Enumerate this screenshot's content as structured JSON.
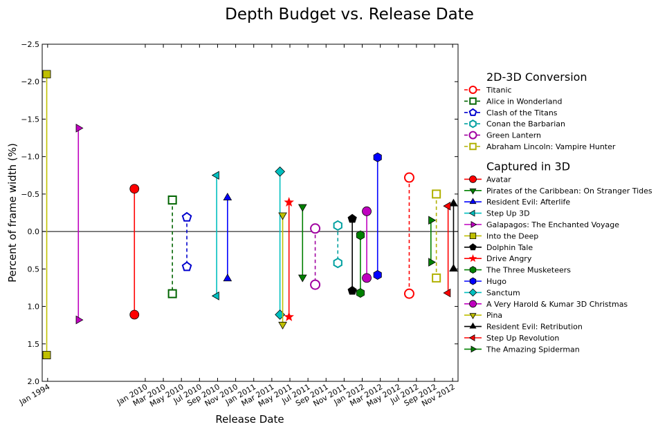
{
  "chart_data": {
    "type": "scatter",
    "title": "Depth Budget vs. Release Date",
    "xlabel": "Release Date",
    "ylabel": "Percent of frame width (%)",
    "ylim": [
      -2.5,
      2.0
    ],
    "y_inverted": true,
    "yticks": [
      -2.5,
      -2.0,
      -1.5,
      -1.0,
      -0.5,
      0.0,
      0.5,
      1.0,
      1.5,
      2.0
    ],
    "ytick_labels": [
      "−2.5",
      "−2.0",
      "−1.5",
      "−1.0",
      "−0.5",
      "0.0",
      "0.5",
      "1.0",
      "1.5",
      "2.0"
    ],
    "xticks": [
      {
        "label": "Jan 1994",
        "pos": 0.6
      },
      {
        "label": "Jan 2010",
        "pos": 6.0
      },
      {
        "label": "Mar 2010",
        "pos": 7.0
      },
      {
        "label": "May 2010",
        "pos": 8.0
      },
      {
        "label": "Jul 2010",
        "pos": 9.0
      },
      {
        "label": "Sep 2010",
        "pos": 10.0
      },
      {
        "label": "Nov 2010",
        "pos": 11.0
      },
      {
        "label": "Jan 2011",
        "pos": 12.0
      },
      {
        "label": "Mar 2011",
        "pos": 13.0
      },
      {
        "label": "May 2011",
        "pos": 14.0
      },
      {
        "label": "Jul 2011",
        "pos": 15.0
      },
      {
        "label": "Sep 2011",
        "pos": 16.0
      },
      {
        "label": "Nov 2011",
        "pos": 17.0
      },
      {
        "label": "Jan 2012",
        "pos": 18.0
      },
      {
        "label": "Mar 2012",
        "pos": 19.0
      },
      {
        "label": "May 2012",
        "pos": 20.0
      },
      {
        "label": "Jul 2012",
        "pos": 21.0
      },
      {
        "label": "Sep 2012",
        "pos": 22.0
      },
      {
        "label": "Nov 2012",
        "pos": 23.0
      }
    ],
    "xlim": [
      0.3,
      23.3
    ],
    "zero_line": true,
    "legend": {
      "placement": "right",
      "groups": [
        {
          "title": "2D-3D Conversion",
          "entries": [
            "Titanic",
            "Alice in Wonderland",
            "Clash of the Titans",
            "Conan the Barbarian",
            "Green Lantern",
            "Abraham Lincoln: Vampire Hunter"
          ]
        },
        {
          "title": "Captured in 3D",
          "entries": [
            "Avatar",
            "Pirates of the Caribbean: On Stranger Tides",
            "Resident Evil: Afterlife",
            "Step Up 3D",
            "Galapagos: The Enchanted Voyage",
            "Into the Deep",
            "Dolphin Tale",
            "Drive Angry",
            "The Three Musketeers",
            "Hugo",
            "Sanctum",
            "A Very Harold & Kumar 3D Christmas",
            "Pina",
            "Resident Evil: Retribution",
            "Step Up Revolution",
            "The Amazing Spiderman"
          ]
        }
      ]
    },
    "series": [
      {
        "name": "Titanic",
        "group": "conversion",
        "x": 20.6,
        "min": -0.72,
        "max": 0.83,
        "color": "#ff0000",
        "marker": "circle",
        "filled": false,
        "dashed": true
      },
      {
        "name": "Alice in Wonderland",
        "group": "conversion",
        "x": 7.5,
        "min": -0.42,
        "max": 0.83,
        "color": "#006400",
        "marker": "square",
        "filled": false,
        "dashed": true
      },
      {
        "name": "Clash of the Titans",
        "group": "conversion",
        "x": 8.3,
        "min": -0.19,
        "max": 0.47,
        "color": "#0000cd",
        "marker": "pentagon",
        "filled": false,
        "dashed": true
      },
      {
        "name": "Conan the Barbarian",
        "group": "conversion",
        "x": 16.65,
        "min": -0.08,
        "max": 0.42,
        "color": "#00a0a0",
        "marker": "hexagon",
        "filled": false,
        "dashed": true
      },
      {
        "name": "Green Lantern",
        "group": "conversion",
        "x": 15.4,
        "min": -0.04,
        "max": 0.71,
        "color": "#a000a0",
        "marker": "circle",
        "filled": false,
        "dashed": true
      },
      {
        "name": "Abraham Lincoln: Vampire Hunter",
        "group": "conversion",
        "x": 22.1,
        "min": -0.5,
        "max": 0.62,
        "color": "#b0b000",
        "marker": "square",
        "filled": false,
        "dashed": true
      },
      {
        "name": "Avatar",
        "group": "captured",
        "x": 5.4,
        "min": -0.57,
        "max": 1.11,
        "color": "#ff0000",
        "marker": "circle",
        "filled": true,
        "dashed": false
      },
      {
        "name": "Pirates of the Caribbean: On Stranger Tides",
        "group": "captured",
        "x": 14.7,
        "min": -0.33,
        "max": 0.61,
        "color": "#008000",
        "marker": "tri-down",
        "filled": true,
        "dashed": false
      },
      {
        "name": "Resident Evil: Afterlife",
        "group": "captured",
        "x": 10.55,
        "min": -0.45,
        "max": 0.63,
        "color": "#0000ff",
        "marker": "tri-up",
        "filled": true,
        "dashed": false
      },
      {
        "name": "Step Up 3D",
        "group": "captured",
        "x": 9.95,
        "min": -0.75,
        "max": 0.86,
        "color": "#00bfbf",
        "marker": "tri-left",
        "filled": true,
        "dashed": false
      },
      {
        "name": "Galapagos: The Enchanted Voyage",
        "group": "captured",
        "x": 2.3,
        "min": -1.38,
        "max": 1.18,
        "color": "#bf00bf",
        "marker": "tri-right",
        "filled": true,
        "dashed": false
      },
      {
        "name": "Into the Deep",
        "group": "captured",
        "x": 0.55,
        "min": -2.1,
        "max": 1.65,
        "color": "#bfbf00",
        "marker": "square",
        "filled": true,
        "dashed": false
      },
      {
        "name": "Dolphin Tale",
        "group": "captured",
        "x": 17.45,
        "min": -0.17,
        "max": 0.79,
        "color": "#000000",
        "marker": "pentagon",
        "filled": true,
        "dashed": false
      },
      {
        "name": "Drive Angry",
        "group": "captured",
        "x": 13.95,
        "min": -0.39,
        "max": 1.14,
        "color": "#ff0000",
        "marker": "star",
        "filled": true,
        "dashed": false
      },
      {
        "name": "The Three Musketeers",
        "group": "captured",
        "x": 17.9,
        "min": 0.05,
        "max": 0.82,
        "color": "#008000",
        "marker": "hexagon",
        "filled": true,
        "dashed": false
      },
      {
        "name": "Hugo",
        "group": "captured",
        "x": 18.85,
        "min": -0.99,
        "max": 0.58,
        "color": "#0000ff",
        "marker": "hexagon",
        "filled": true,
        "dashed": false
      },
      {
        "name": "Sanctum",
        "group": "captured",
        "x": 13.45,
        "min": -0.8,
        "max": 1.11,
        "color": "#00bfbf",
        "marker": "diamond",
        "filled": true,
        "dashed": false
      },
      {
        "name": "A Very Harold & Kumar 3D Christmas",
        "group": "captured",
        "x": 18.25,
        "min": -0.27,
        "max": 0.62,
        "color": "#bf00bf",
        "marker": "circle",
        "filled": true,
        "dashed": false
      },
      {
        "name": "Pina",
        "group": "captured",
        "x": 13.6,
        "min": -0.22,
        "max": 1.24,
        "color": "#bfbf00",
        "marker": "tri-down",
        "filled": true,
        "dashed": false
      },
      {
        "name": "Resident Evil: Retribution",
        "group": "captured",
        "x": 23.05,
        "min": -0.37,
        "max": 0.5,
        "color": "#000000",
        "marker": "tri-up",
        "filled": true,
        "dashed": false
      },
      {
        "name": "Step Up Revolution",
        "group": "captured",
        "x": 22.75,
        "min": -0.34,
        "max": 0.82,
        "color": "#ff0000",
        "marker": "tri-left",
        "filled": true,
        "dashed": false
      },
      {
        "name": "The Amazing Spiderman",
        "group": "captured",
        "x": 21.8,
        "min": -0.15,
        "max": 0.41,
        "color": "#008000",
        "marker": "tri-right",
        "filled": true,
        "dashed": false
      }
    ]
  }
}
